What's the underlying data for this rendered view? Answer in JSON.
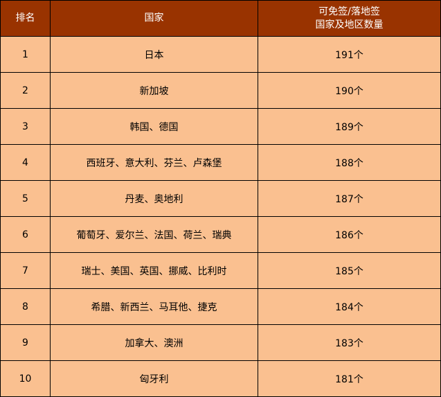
{
  "colors": {
    "header_bg": "#993300",
    "row_bg": "#FAC090"
  },
  "headers": [
    "排名",
    "国家",
    "可免签/落地签",
    "国家及地区数量"
  ],
  "rows": [
    {
      "rank": "1",
      "countries": "日本",
      "count": "191个"
    },
    {
      "rank": "2",
      "countries": "新加坡",
      "count": "190个"
    },
    {
      "rank": "3",
      "countries": "韩国、德国",
      "count": "189个"
    },
    {
      "rank": "4",
      "countries": "西班牙、意大利、芬兰、卢森堡",
      "count": "188个"
    },
    {
      "rank": "5",
      "countries": "丹麦、奥地利",
      "count": "187个"
    },
    {
      "rank": "6",
      "countries": "葡萄牙、爱尔兰、法国、荷兰、瑞典",
      "count": "186个"
    },
    {
      "rank": "7",
      "countries": "瑞士、美国、英国、挪威、比利时",
      "count": "185个"
    },
    {
      "rank": "8",
      "countries": "希腊、新西兰、马耳他、捷克",
      "count": "184个"
    },
    {
      "rank": "9",
      "countries": "加拿大、澳洲",
      "count": "183个"
    },
    {
      "rank": "10",
      "countries": "匈牙利",
      "count": "181个"
    }
  ]
}
